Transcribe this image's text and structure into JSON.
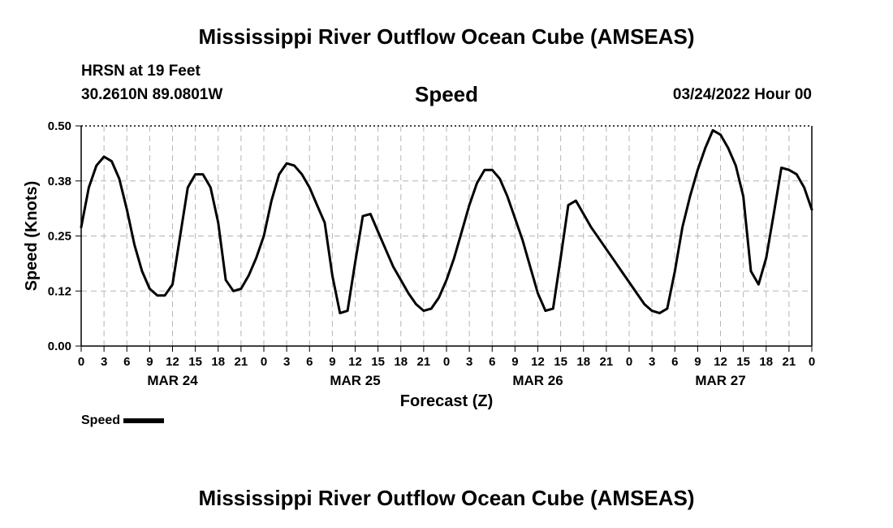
{
  "header": {
    "title": "Mississippi River Outflow Ocean Cube (AMSEAS)",
    "station": "HRSN at 19 Feet",
    "coords": "30.2610N  89.0801W",
    "datetime": "03/24/2022 Hour 00",
    "chart_title": "Speed"
  },
  "footer": {
    "title": "Mississippi River Outflow Ocean Cube (AMSEAS)"
  },
  "chart_data": {
    "type": "line",
    "title": "Speed",
    "xlabel": "Forecast (Z)",
    "ylabel": "Speed (Knots)",
    "ylim": [
      0,
      0.5
    ],
    "xlim": [
      0,
      96
    ],
    "x_unit": "hours from 03/24/2022 00Z",
    "yticks": [
      "0.00",
      "0.12",
      "0.25",
      "0.38",
      "0.50"
    ],
    "ytick_values": [
      0,
      0.125,
      0.25,
      0.375,
      0.5
    ],
    "xtick_labels": [
      "0",
      "3",
      "6",
      "9",
      "12",
      "15",
      "18",
      "21",
      "0",
      "3",
      "6",
      "9",
      "12",
      "15",
      "18",
      "21",
      "0",
      "3",
      "6",
      "9",
      "12",
      "15",
      "18",
      "21",
      "0",
      "3",
      "6",
      "9",
      "12",
      "15",
      "18",
      "21",
      "0"
    ],
    "day_labels": [
      {
        "label": "MAR 24",
        "x": 12
      },
      {
        "label": "MAR 25",
        "x": 36
      },
      {
        "label": "MAR 26",
        "x": 60
      },
      {
        "label": "MAR 27",
        "x": 84
      }
    ],
    "grid": true,
    "legend": {
      "position": "bottom-left",
      "entries": [
        "Speed"
      ]
    },
    "series": [
      {
        "name": "Speed",
        "color": "#000000",
        "x": [
          0,
          1,
          2,
          3,
          4,
          5,
          6,
          7,
          8,
          9,
          10,
          11,
          12,
          13,
          14,
          15,
          16,
          17,
          18,
          19,
          20,
          21,
          22,
          23,
          24,
          25,
          26,
          27,
          28,
          29,
          30,
          31,
          32,
          33,
          34,
          35,
          36,
          37,
          38,
          39,
          40,
          41,
          42,
          43,
          44,
          45,
          46,
          47,
          48,
          49,
          50,
          51,
          52,
          53,
          54,
          55,
          56,
          57,
          58,
          59,
          60,
          61,
          62,
          63,
          64,
          65,
          66,
          67,
          68,
          69,
          70,
          71,
          72,
          73,
          74,
          75,
          76,
          77,
          78,
          79,
          80,
          81,
          82,
          83,
          84,
          85,
          86,
          87,
          88,
          89,
          90,
          91,
          92,
          93,
          94,
          95,
          96
        ],
        "y": [
          0.27,
          0.36,
          0.41,
          0.43,
          0.42,
          0.38,
          0.31,
          0.23,
          0.17,
          0.13,
          0.115,
          0.115,
          0.14,
          0.25,
          0.36,
          0.39,
          0.39,
          0.36,
          0.28,
          0.15,
          0.125,
          0.13,
          0.16,
          0.2,
          0.25,
          0.33,
          0.39,
          0.415,
          0.41,
          0.39,
          0.36,
          0.32,
          0.28,
          0.16,
          0.075,
          0.08,
          0.19,
          0.295,
          0.3,
          0.26,
          0.22,
          0.18,
          0.15,
          0.12,
          0.095,
          0.08,
          0.085,
          0.11,
          0.15,
          0.2,
          0.26,
          0.32,
          0.37,
          0.4,
          0.4,
          0.38,
          0.34,
          0.29,
          0.24,
          0.18,
          0.12,
          0.08,
          0.085,
          0.2,
          0.32,
          0.33,
          0.3,
          0.27,
          0.245,
          0.22,
          0.195,
          0.17,
          0.145,
          0.12,
          0.095,
          0.08,
          0.075,
          0.085,
          0.17,
          0.27,
          0.34,
          0.4,
          0.45,
          0.49,
          0.48,
          0.45,
          0.41,
          0.34,
          0.17,
          0.14,
          0.2,
          0.3,
          0.405,
          0.4,
          0.39,
          0.36,
          0.31
        ]
      }
    ]
  }
}
